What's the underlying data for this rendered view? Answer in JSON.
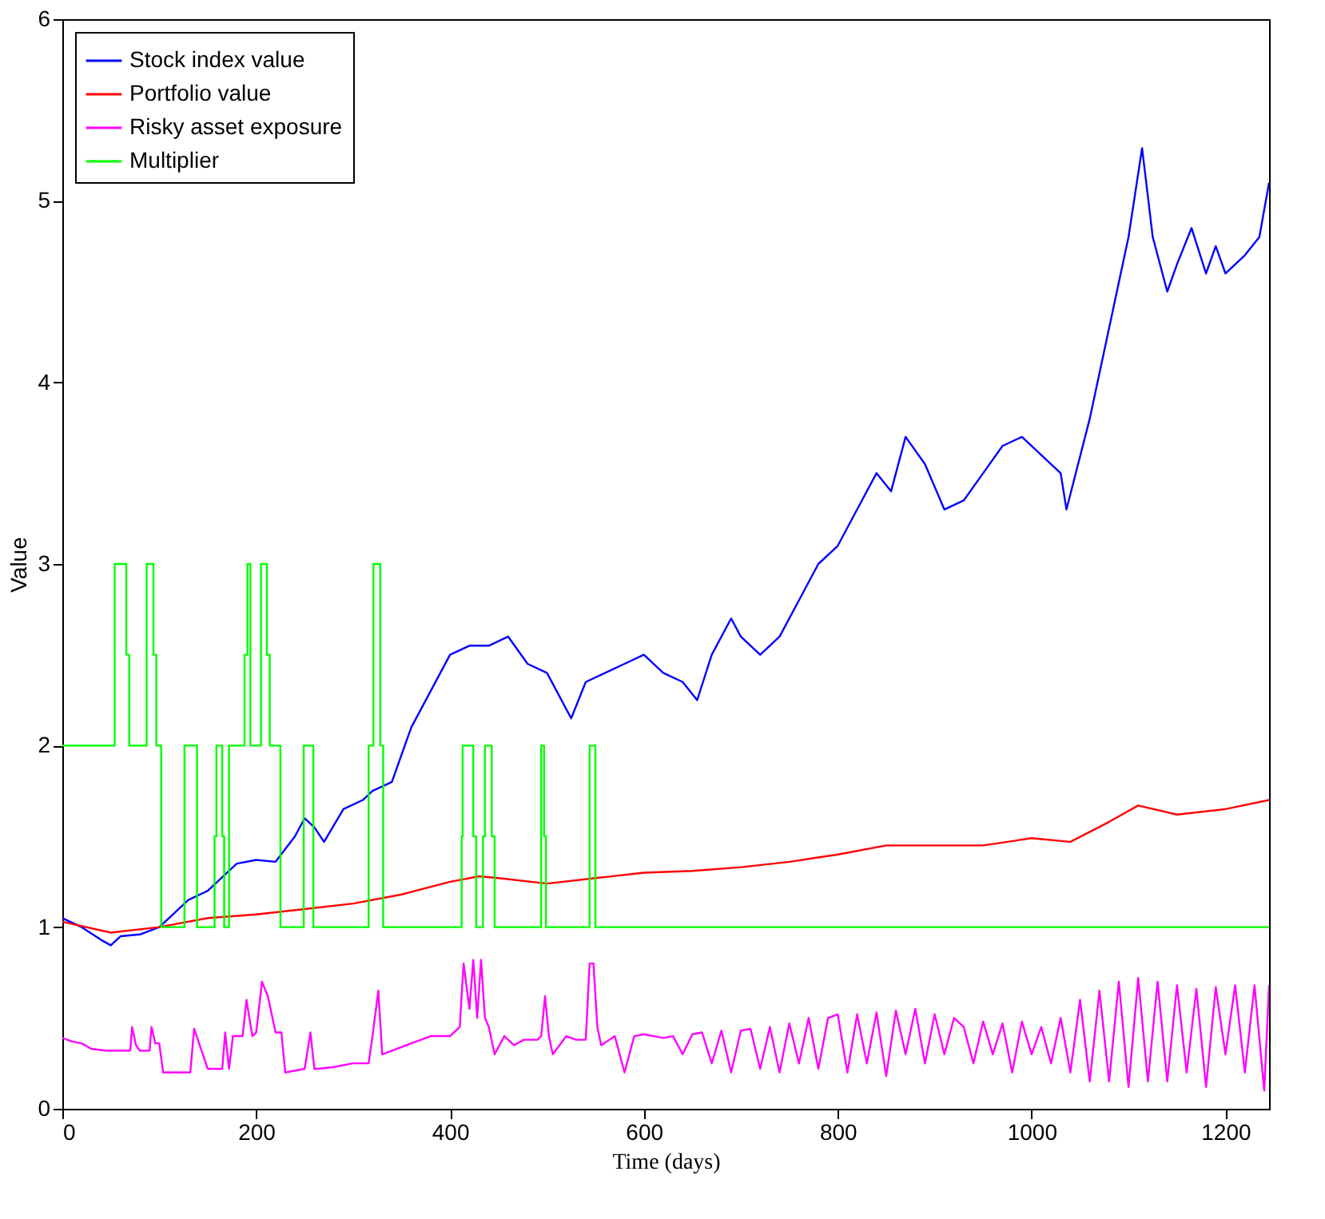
{
  "chart_data": {
    "type": "line",
    "xlabel": "Time (days)",
    "ylabel": "Value",
    "xlim": [
      0,
      1245
    ],
    "ylim": [
      0,
      6
    ],
    "xticks": [
      0,
      200,
      400,
      600,
      800,
      1000,
      1200
    ],
    "yticks": [
      0,
      1,
      2,
      3,
      4,
      5,
      6
    ],
    "grid": false,
    "legend": "top left",
    "line_style": "solid",
    "marker": "none",
    "series": [
      {
        "name": "Stock index value",
        "color": "#0000ff",
        "x": [
          0,
          20,
          40,
          50,
          60,
          80,
          100,
          110,
          130,
          150,
          170,
          180,
          200,
          220,
          240,
          250,
          260,
          270,
          290,
          310,
          320,
          340,
          360,
          380,
          400,
          420,
          440,
          460,
          480,
          500,
          510,
          525,
          540,
          560,
          580,
          600,
          620,
          640,
          655,
          670,
          690,
          700,
          720,
          740,
          760,
          780,
          800,
          820,
          840,
          855,
          870,
          890,
          910,
          930,
          950,
          970,
          990,
          1010,
          1030,
          1036,
          1060,
          1080,
          1100,
          1114,
          1125,
          1140,
          1150,
          1165,
          1180,
          1190,
          1200,
          1220,
          1235,
          1245
        ],
        "values": [
          1.05,
          1.0,
          0.93,
          0.9,
          0.95,
          0.96,
          1.0,
          1.05,
          1.15,
          1.2,
          1.3,
          1.35,
          1.37,
          1.36,
          1.5,
          1.6,
          1.55,
          1.47,
          1.65,
          1.7,
          1.75,
          1.8,
          2.1,
          2.3,
          2.5,
          2.55,
          2.55,
          2.6,
          2.45,
          2.4,
          2.3,
          2.15,
          2.35,
          2.4,
          2.45,
          2.5,
          2.4,
          2.35,
          2.25,
          2.5,
          2.7,
          2.6,
          2.5,
          2.6,
          2.8,
          3.0,
          3.1,
          3.3,
          3.5,
          3.4,
          3.7,
          3.55,
          3.3,
          3.35,
          3.5,
          3.65,
          3.7,
          3.6,
          3.5,
          3.3,
          3.8,
          4.3,
          4.8,
          5.29,
          4.8,
          4.5,
          4.65,
          4.85,
          4.6,
          4.75,
          4.6,
          4.7,
          4.8,
          5.1
        ]
      },
      {
        "name": "Portfolio value",
        "color": "#ff0000",
        "x": [
          0,
          50,
          100,
          150,
          200,
          250,
          300,
          350,
          400,
          430,
          450,
          500,
          550,
          600,
          650,
          700,
          750,
          800,
          850,
          900,
          950,
          1000,
          1040,
          1080,
          1110,
          1150,
          1200,
          1245
        ],
        "values": [
          1.03,
          0.97,
          1.0,
          1.05,
          1.07,
          1.1,
          1.13,
          1.18,
          1.25,
          1.28,
          1.27,
          1.24,
          1.27,
          1.3,
          1.31,
          1.33,
          1.36,
          1.4,
          1.45,
          1.45,
          1.45,
          1.49,
          1.47,
          1.58,
          1.67,
          1.62,
          1.65,
          1.7
        ]
      },
      {
        "name": "Risky asset exposure",
        "color": "#ff00ff",
        "x": [
          0,
          10,
          20,
          30,
          45,
          60,
          70,
          72,
          76,
          80,
          90,
          92,
          96,
          100,
          104,
          118,
          120,
          125,
          128,
          132,
          136,
          150,
          165,
          168,
          172,
          176,
          186,
          190,
          196,
          200,
          206,
          212,
          220,
          226,
          230,
          250,
          256,
          260,
          264,
          280,
          300,
          316,
          320,
          326,
          330,
          340,
          360,
          380,
          400,
          410,
          414,
          420,
          424,
          428,
          432,
          436,
          440,
          446,
          456,
          466,
          476,
          490,
          494,
          498,
          502,
          506,
          520,
          530,
          540,
          544,
          548,
          552,
          556,
          570,
          580,
          590,
          600,
          610,
          620,
          630,
          640,
          650,
          660,
          670,
          680,
          690,
          700,
          710,
          720,
          730,
          740,
          750,
          760,
          770,
          780,
          790,
          800,
          810,
          820,
          830,
          840,
          850,
          860,
          870,
          880,
          890,
          900,
          910,
          920,
          930,
          940,
          950,
          960,
          970,
          980,
          990,
          1000,
          1010,
          1020,
          1030,
          1040,
          1050,
          1060,
          1070,
          1080,
          1090,
          1100,
          1110,
          1120,
          1130,
          1140,
          1150,
          1160,
          1170,
          1180,
          1190,
          1200,
          1210,
          1220,
          1230,
          1240,
          1245
        ],
        "values": [
          0.39,
          0.37,
          0.36,
          0.33,
          0.32,
          0.32,
          0.32,
          0.45,
          0.35,
          0.32,
          0.32,
          0.45,
          0.36,
          0.36,
          0.2,
          0.2,
          0.2,
          0.2,
          0.2,
          0.2,
          0.44,
          0.22,
          0.22,
          0.42,
          0.22,
          0.4,
          0.4,
          0.6,
          0.4,
          0.42,
          0.7,
          0.62,
          0.42,
          0.42,
          0.2,
          0.22,
          0.42,
          0.22,
          0.22,
          0.23,
          0.25,
          0.25,
          0.4,
          0.65,
          0.3,
          0.32,
          0.36,
          0.4,
          0.4,
          0.45,
          0.8,
          0.55,
          0.82,
          0.5,
          0.82,
          0.5,
          0.45,
          0.3,
          0.4,
          0.35,
          0.38,
          0.38,
          0.4,
          0.62,
          0.4,
          0.3,
          0.4,
          0.38,
          0.38,
          0.8,
          0.8,
          0.45,
          0.35,
          0.4,
          0.2,
          0.4,
          0.41,
          0.4,
          0.39,
          0.4,
          0.3,
          0.41,
          0.42,
          0.25,
          0.43,
          0.2,
          0.43,
          0.44,
          0.22,
          0.45,
          0.2,
          0.47,
          0.25,
          0.5,
          0.22,
          0.5,
          0.52,
          0.2,
          0.52,
          0.25,
          0.53,
          0.18,
          0.54,
          0.3,
          0.55,
          0.25,
          0.52,
          0.3,
          0.5,
          0.45,
          0.25,
          0.48,
          0.3,
          0.47,
          0.2,
          0.48,
          0.3,
          0.45,
          0.25,
          0.5,
          0.2,
          0.6,
          0.15,
          0.65,
          0.15,
          0.7,
          0.12,
          0.72,
          0.15,
          0.7,
          0.15,
          0.68,
          0.2,
          0.66,
          0.12,
          0.67,
          0.3,
          0.68,
          0.2,
          0.68,
          0.1,
          0.68
        ]
      },
      {
        "name": "Multiplier",
        "color": "#00ff00",
        "type": "step",
        "x": [
          0,
          54,
          66,
          69,
          87,
          94,
          97,
          102,
          126,
          139,
          157,
          159,
          165,
          167,
          172,
          188,
          191,
          194,
          205,
          211,
          214,
          225,
          249,
          259,
          316,
          321,
          328,
          331,
          412,
          413,
          424,
          427,
          434,
          436,
          443,
          446,
          494,
          497,
          499,
          544,
          550,
          1245
        ],
        "values": [
          2,
          3,
          2.5,
          2,
          3,
          2.5,
          2,
          1,
          2,
          1,
          1.5,
          2,
          1.5,
          1,
          2,
          2.5,
          3,
          2,
          3,
          2.5,
          2,
          1,
          2,
          1,
          2,
          3,
          2,
          1,
          1.5,
          2,
          1.5,
          1,
          1.5,
          2,
          1.5,
          1,
          2,
          1.5,
          1,
          2,
          1,
          1
        ]
      }
    ]
  }
}
